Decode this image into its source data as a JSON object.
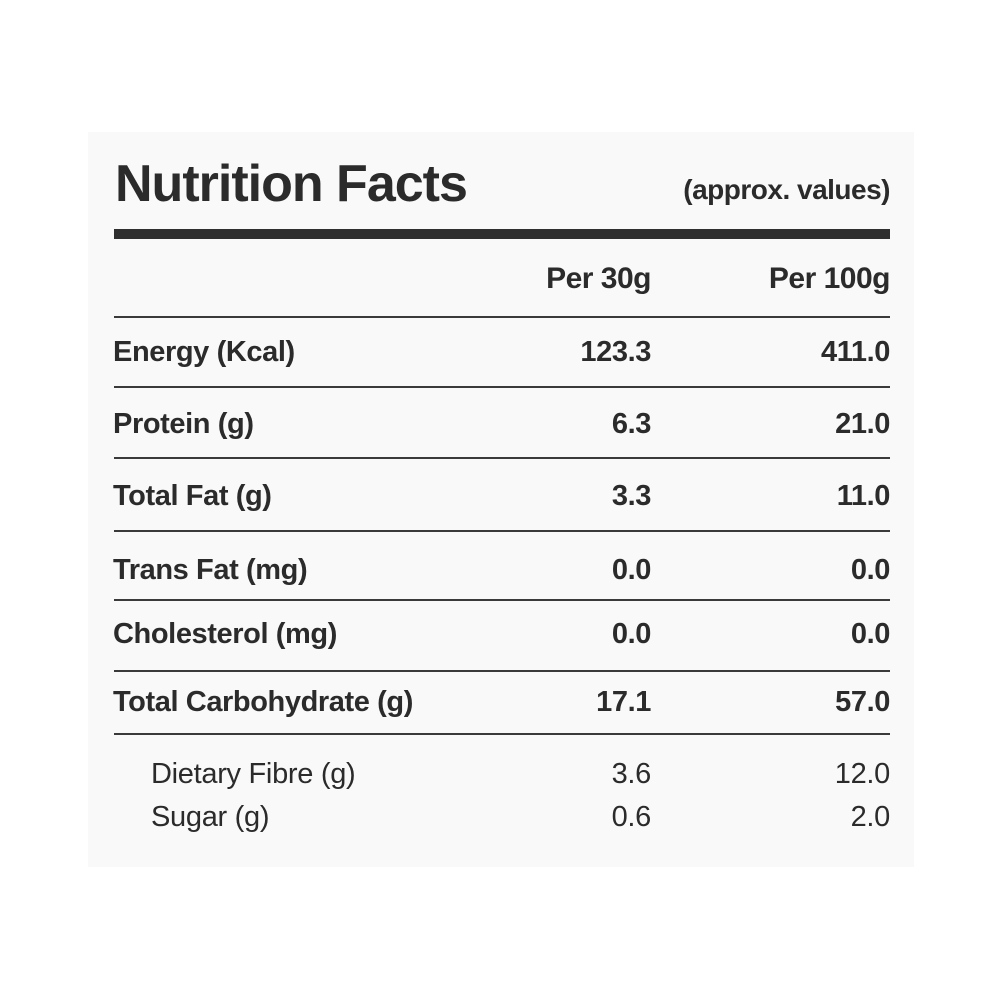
{
  "header": {
    "title": "Nutrition Facts",
    "subtitle": "(approx. values)"
  },
  "columns": {
    "per_serving": "Per 30g",
    "per_100g": "Per 100g"
  },
  "rows": [
    {
      "label": "Energy (Kcal)",
      "per_serving": "123.3",
      "per_100g": "411.0"
    },
    {
      "label": "Protein (g)",
      "per_serving": "6.3",
      "per_100g": "21.0"
    },
    {
      "label": "Total Fat (g)",
      "per_serving": "3.3",
      "per_100g": "11.0"
    },
    {
      "label": "Trans Fat (mg)",
      "per_serving": "0.0",
      "per_100g": "0.0"
    },
    {
      "label": "Cholesterol (mg)",
      "per_serving": "0.0",
      "per_100g": "0.0"
    },
    {
      "label": "Total Carbohydrate (g)",
      "per_serving": "17.1",
      "per_100g": "57.0"
    }
  ],
  "sub_rows": [
    {
      "label": "Dietary Fibre (g)",
      "per_serving": "3.6",
      "per_100g": "12.0"
    },
    {
      "label": "Sugar (g)",
      "per_serving": "0.6",
      "per_100g": "2.0"
    }
  ]
}
